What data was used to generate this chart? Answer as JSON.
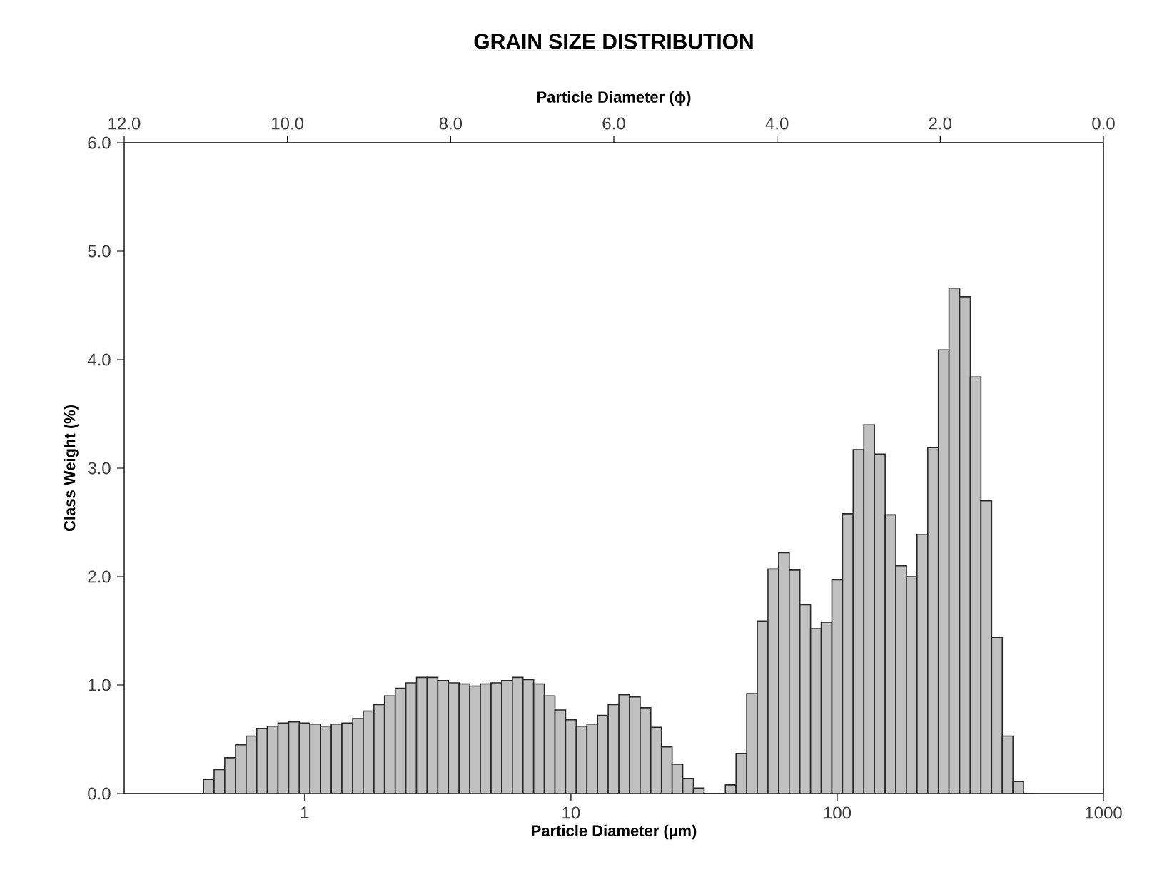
{
  "chart_data": {
    "type": "histogram",
    "title": "GRAIN SIZE DISTRIBUTION",
    "xlabel": "Particle Diameter (µm)",
    "ylabel": "Class Weight (%)",
    "x2label": "Particle Diameter (ϕ)",
    "color": "#c0c0c0",
    "log": "x",
    "bins": [
      0.417,
      0.457,
      0.501,
      0.55,
      0.603,
      0.661,
      0.724,
      0.794,
      0.871,
      0.955,
      1.047,
      1.148,
      1.259,
      1.38,
      1.514,
      1.66,
      1.82,
      1.995,
      2.188,
      2.399,
      2.63,
      2.884,
      3.162,
      3.467,
      3.802,
      4.169,
      4.571,
      5.012,
      5.495,
      6.026,
      6.607,
      7.244,
      7.943,
      8.71,
      9.55,
      10.47,
      11.48,
      12.59,
      13.8,
      15.14,
      16.6,
      18.2,
      19.95,
      21.88,
      23.99,
      26.3,
      28.84,
      31.62,
      34.67,
      38.02,
      41.69,
      45.71,
      50.12,
      54.95,
      60.26,
      66.07,
      72.44,
      79.43,
      87.1,
      95.5,
      104.7,
      114.8,
      125.9,
      138.0,
      151.4,
      166.0,
      182.0,
      199.5,
      218.8,
      239.9,
      263.0,
      288.4,
      316.2,
      346.7,
      380.2,
      416.9,
      457.1,
      501.2,
      549.5
    ],
    "values": [
      0.13,
      0.22,
      0.33,
      0.45,
      0.53,
      0.6,
      0.62,
      0.65,
      0.66,
      0.65,
      0.64,
      0.62,
      0.64,
      0.65,
      0.69,
      0.76,
      0.82,
      0.9,
      0.97,
      1.02,
      1.07,
      1.07,
      1.04,
      1.02,
      1.01,
      0.99,
      1.01,
      1.02,
      1.04,
      1.07,
      1.05,
      1.01,
      0.9,
      0.77,
      0.68,
      0.62,
      0.64,
      0.72,
      0.82,
      0.91,
      0.89,
      0.79,
      0.61,
      0.43,
      0.27,
      0.14,
      0.05,
      0,
      0,
      0.08,
      0.37,
      0.92,
      1.59,
      2.07,
      2.22,
      2.06,
      1.74,
      1.52,
      1.58,
      1.97,
      2.58,
      3.17,
      3.4,
      3.13,
      2.57,
      2.1,
      2.0,
      2.39,
      3.19,
      4.09,
      4.66,
      4.58,
      3.84,
      2.7,
      1.44,
      0.53,
      0.11,
      0
    ],
    "xlim": [
      0.21,
      1000
    ],
    "xticks": [
      1,
      10,
      100,
      1000
    ],
    "ylim": [
      0,
      6
    ],
    "yticks": [
      {
        "value": 0,
        "label": "0.0"
      },
      {
        "value": 1,
        "label": "1.0"
      },
      {
        "value": 2,
        "label": "2.0"
      },
      {
        "value": 3,
        "label": "3.0"
      },
      {
        "value": 4,
        "label": "4.0"
      },
      {
        "value": 5,
        "label": "5.0"
      },
      {
        "value": 6,
        "label": "6.0"
      }
    ],
    "x2lim": [
      12,
      0
    ],
    "x2ticks": [
      {
        "value": 12,
        "label": "12.0"
      },
      {
        "value": 10,
        "label": "10.0"
      },
      {
        "value": 8,
        "label": "8.0"
      },
      {
        "value": 6,
        "label": "6.0"
      },
      {
        "value": 4,
        "label": "4.0"
      },
      {
        "value": 2,
        "label": "2.0"
      },
      {
        "value": 0,
        "label": "0.0"
      }
    ]
  }
}
